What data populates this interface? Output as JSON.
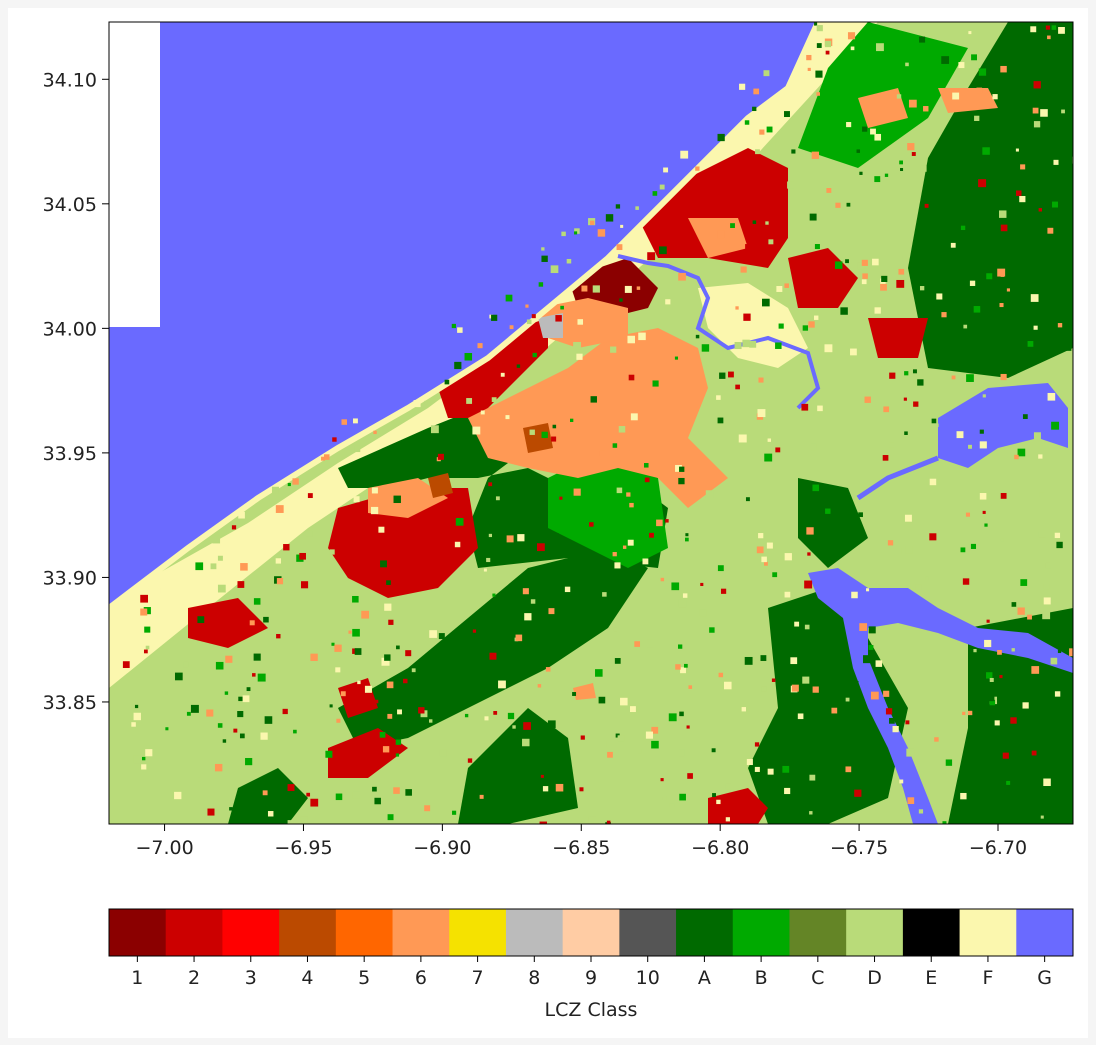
{
  "map": {
    "x_ticks": [
      "−7.00",
      "−6.95",
      "−6.90",
      "−6.85",
      "−6.80",
      "−6.75",
      "−6.70"
    ],
    "x_tick_values": [
      -7.0,
      -6.95,
      -6.9,
      -6.85,
      -6.8,
      -6.75,
      -6.7
    ],
    "y_ticks": [
      "34.10",
      "34.05",
      "34.00",
      "33.95",
      "33.90",
      "33.85"
    ],
    "y_tick_values": [
      34.1,
      34.05,
      34.0,
      33.95,
      33.9,
      33.85
    ],
    "x_range": [
      -7.02,
      -6.673
    ],
    "y_range": [
      33.801,
      34.123
    ]
  },
  "legend": {
    "title": "LCZ Class",
    "classes": [
      {
        "label": "1",
        "color": "#8b0000"
      },
      {
        "label": "2",
        "color": "#cc0000"
      },
      {
        "label": "3",
        "color": "#ff0000"
      },
      {
        "label": "4",
        "color": "#bb4a00"
      },
      {
        "label": "5",
        "color": "#ff6600"
      },
      {
        "label": "6",
        "color": "#ff9955"
      },
      {
        "label": "7",
        "color": "#f5e200"
      },
      {
        "label": "8",
        "color": "#bbbbbb"
      },
      {
        "label": "9",
        "color": "#ffcca4"
      },
      {
        "label": "10",
        "color": "#555555"
      },
      {
        "label": "A",
        "color": "#006a00"
      },
      {
        "label": "B",
        "color": "#00aa00"
      },
      {
        "label": "C",
        "color": "#648526"
      },
      {
        "label": "D",
        "color": "#b9db79"
      },
      {
        "label": "E",
        "color": "#000000"
      },
      {
        "label": "F",
        "color": "#fbf7ae"
      },
      {
        "label": "G",
        "color": "#6a6aff"
      }
    ]
  }
}
